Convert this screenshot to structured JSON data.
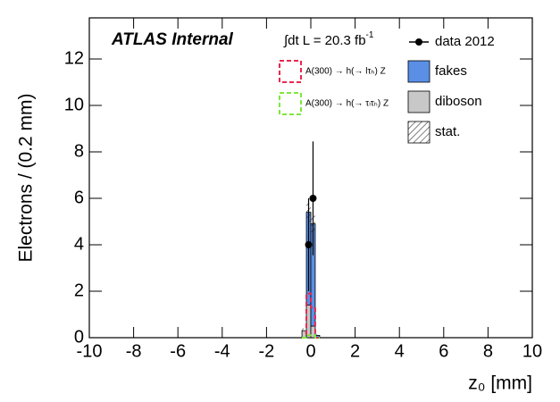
{
  "chart_data": {
    "type": "histogram",
    "title": "ATLAS Internal",
    "luminosity": "∫dt L = 20.3 fb",
    "luminosity_sup": "-1",
    "x_label": "z₀  [mm]",
    "y_label": "Electrons / (0.2 mm)",
    "xlim": [
      -10,
      10
    ],
    "ylim": [
      0,
      13.77
    ],
    "xticks": [
      -10,
      -8,
      -6,
      -4,
      -2,
      0,
      2,
      4,
      6,
      8,
      10
    ],
    "yticks": [
      0,
      2,
      4,
      6,
      8,
      10,
      12
    ],
    "bins": [
      -0.4,
      -0.2,
      0,
      0.2,
      0.4
    ],
    "series": [
      {
        "name": "diboson",
        "color": "#c8c8c8",
        "values": [
          0.3,
          1.4,
          0.5,
          0
        ]
      },
      {
        "name": "fakes",
        "color": "#5b8fe6",
        "values": [
          0,
          4.0,
          4.4,
          0.1
        ]
      }
    ],
    "stat": {
      "name": "stat.",
      "errors": [
        0.1,
        0.4,
        0.45,
        0.05
      ]
    },
    "signals": [
      {
        "name": "A(300) → h(→ lτₕ) Z",
        "color": "#e8284f",
        "values": [
          0,
          1.9,
          1.3,
          0
        ]
      },
      {
        "name": "A(300) → h(→ τₗτₕ) Z",
        "color": "#7ee83a",
        "values": [
          0,
          0.1,
          0.1,
          0
        ]
      }
    ],
    "data": {
      "name": "data 2012",
      "color": "#000000",
      "x": [
        -0.1,
        0.1
      ],
      "values": [
        4,
        6
      ],
      "errors": [
        2,
        2.45
      ]
    }
  }
}
